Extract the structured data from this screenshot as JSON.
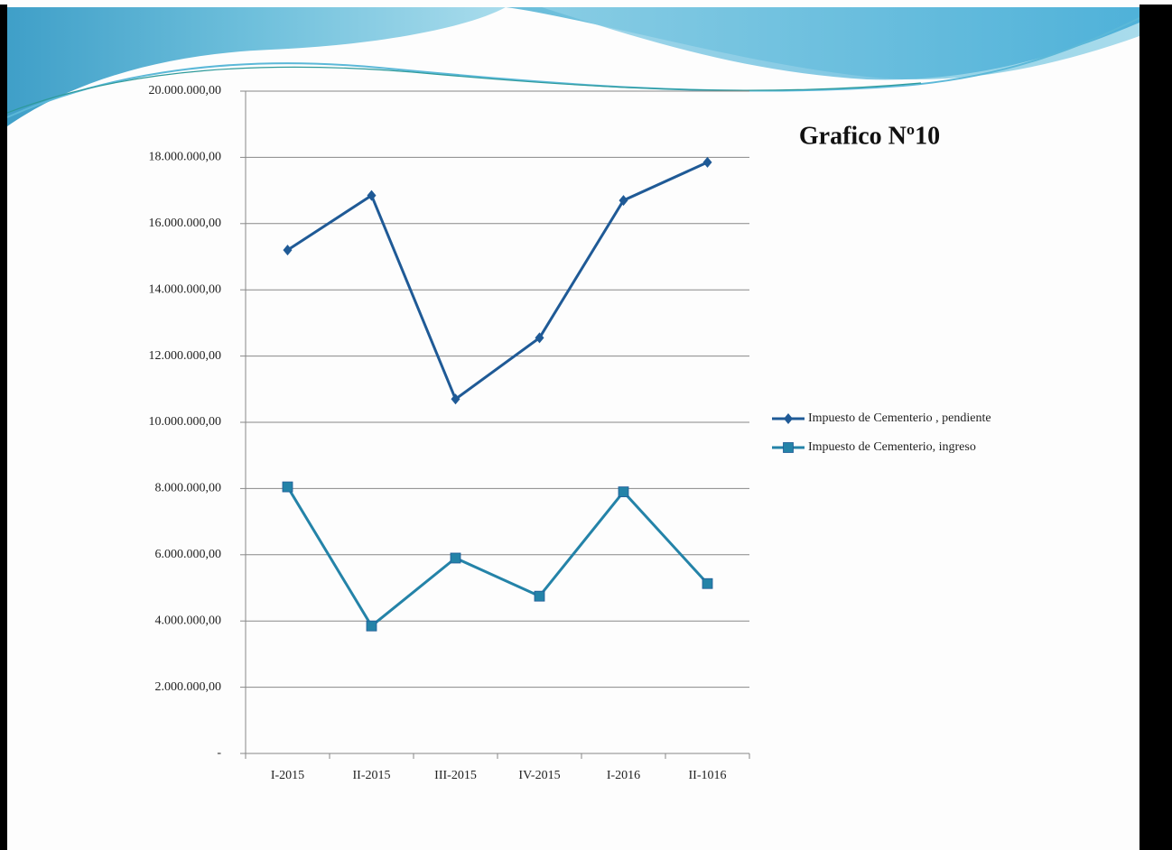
{
  "chart_data": {
    "type": "line",
    "title": "Grafico Nº10",
    "categories": [
      "I-2015",
      "II-2015",
      "III-2015",
      "IV-2015",
      "I-2016",
      "II-1016"
    ],
    "series": [
      {
        "name": "Impuesto de Cementerio , pendiente",
        "color": "#1f5a96",
        "marker": "diamond",
        "values": [
          15200000,
          16850000,
          10700000,
          12550000,
          16700000,
          17850000
        ]
      },
      {
        "name": "Impuesto de Cementerio, ingreso",
        "color": "#2483a8",
        "marker": "square",
        "values": [
          8050000,
          3850000,
          5900000,
          4750000,
          7900000,
          5130000
        ]
      }
    ],
    "ylim": [
      0,
      20000000
    ],
    "yticks": [
      {
        "value": 0,
        "label": "-"
      },
      {
        "value": 2000000,
        "label": "2.000.000,00"
      },
      {
        "value": 4000000,
        "label": "4.000.000,00"
      },
      {
        "value": 6000000,
        "label": "6.000.000,00"
      },
      {
        "value": 8000000,
        "label": "8.000.000,00"
      },
      {
        "value": 10000000,
        "label": "10.000.000,00"
      },
      {
        "value": 12000000,
        "label": "12.000.000,00"
      },
      {
        "value": 14000000,
        "label": "14.000.000,00"
      },
      {
        "value": 16000000,
        "label": "16.000.000,00"
      },
      {
        "value": 18000000,
        "label": "18.000.000,00"
      },
      {
        "value": 20000000,
        "label": "20.000.000,00"
      }
    ],
    "grid": true,
    "legend": "right"
  }
}
